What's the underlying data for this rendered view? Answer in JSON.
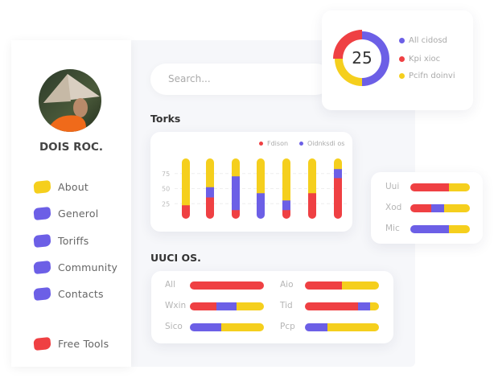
{
  "colors": {
    "red": "#ef4043",
    "purple": "#6c5fe6",
    "yellow": "#f5cf1d"
  },
  "profile": {
    "name": "DOIS ROC."
  },
  "sidebar": {
    "items": [
      {
        "label": "About",
        "color": "#f5cf1d"
      },
      {
        "label": "Generol",
        "color": "#6c5fe6"
      },
      {
        "label": "Toriffs",
        "color": "#6c5fe6"
      },
      {
        "label": "Community",
        "color": "#6c5fe6"
      },
      {
        "label": "Contacts",
        "color": "#6c5fe6"
      },
      {
        "label": "Free Tools",
        "color": "#ef4043"
      }
    ]
  },
  "search": {
    "placeholder": "Search..."
  },
  "donut": {
    "center_value": "25",
    "legend": [
      "All cidosd",
      "Kpi xioc",
      "Pcifn doinvi"
    ],
    "slices": [
      50,
      25,
      25
    ]
  },
  "sections": {
    "chart_title": "Torks",
    "bars_title": "UUCI OS."
  },
  "chart_data": {
    "type": "bar",
    "stacked": true,
    "legend": [
      "Fdison",
      "Oidnksdi os"
    ],
    "legend_placement": "top-right",
    "yticks": [
      "75",
      "50",
      "25"
    ],
    "ylim": [
      0,
      100
    ],
    "grid": true,
    "series_colors": [
      "#ef4043",
      "#6c5fe6",
      "#f5cf1d"
    ],
    "bars": [
      [
        23,
        0,
        77
      ],
      [
        36,
        17,
        47
      ],
      [
        15,
        56,
        29
      ],
      [
        0,
        43,
        57
      ],
      [
        15,
        16,
        69
      ],
      [
        43,
        0,
        57
      ],
      [
        68,
        15,
        17
      ]
    ]
  },
  "side_bars": [
    {
      "label": "Uui",
      "segments": [
        65,
        0,
        35
      ]
    },
    {
      "label": "Xod",
      "segments": [
        35,
        22,
        43
      ]
    },
    {
      "label": "Mic",
      "segments": [
        0,
        65,
        35
      ]
    }
  ],
  "bottom_bars": [
    {
      "label": "All",
      "segments": [
        100,
        0,
        0
      ]
    },
    {
      "label": "Aio",
      "segments": [
        50,
        0,
        50
      ]
    },
    {
      "label": "Wxin",
      "segments": [
        36,
        27,
        37
      ]
    },
    {
      "label": "Tid",
      "segments": [
        72,
        16,
        12
      ]
    },
    {
      "label": "Sico",
      "segments": [
        0,
        42,
        58
      ]
    },
    {
      "label": "Pcp",
      "segments": [
        0,
        30,
        70
      ]
    }
  ]
}
